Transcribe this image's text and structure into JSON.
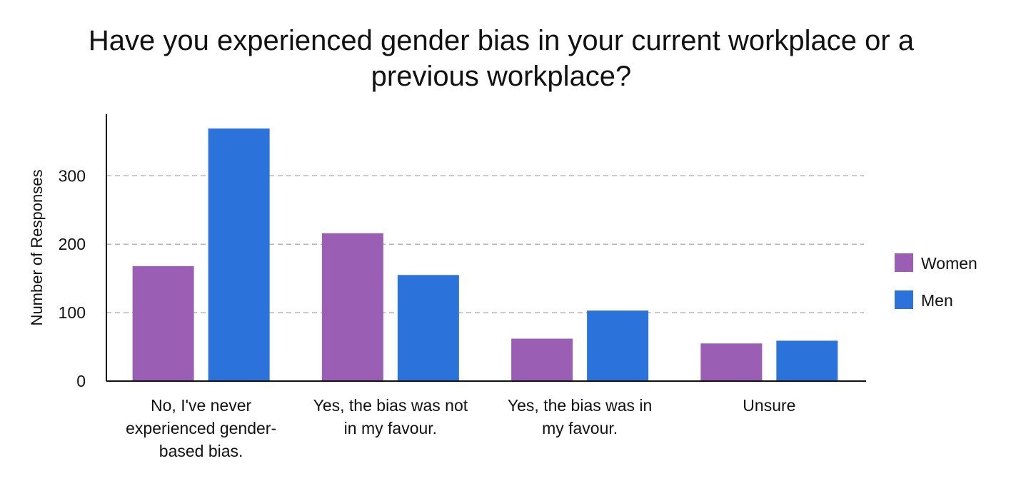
{
  "chart_data": {
    "type": "bar",
    "title_lines": [
      "Have you experienced gender bias in your current workplace or a",
      "previous workplace?"
    ],
    "xlabel": "",
    "ylabel": "Number of Responses",
    "ylim": [
      0,
      390
    ],
    "yticks": [
      0,
      100,
      200,
      300
    ],
    "grid": true,
    "legend_position": "right",
    "categories": [
      [
        "No, I've never",
        "experienced gender-",
        "based bias."
      ],
      [
        "Yes, the bias was not",
        "in my favour."
      ],
      [
        "Yes, the bias was in",
        "my favour."
      ],
      [
        "Unsure"
      ]
    ],
    "series": [
      {
        "name": "Women",
        "color": "#9a5fb4",
        "values": [
          168,
          216,
          62,
          55
        ]
      },
      {
        "name": "Men",
        "color": "#2b72db",
        "values": [
          369,
          155,
          103,
          59
        ]
      }
    ]
  }
}
